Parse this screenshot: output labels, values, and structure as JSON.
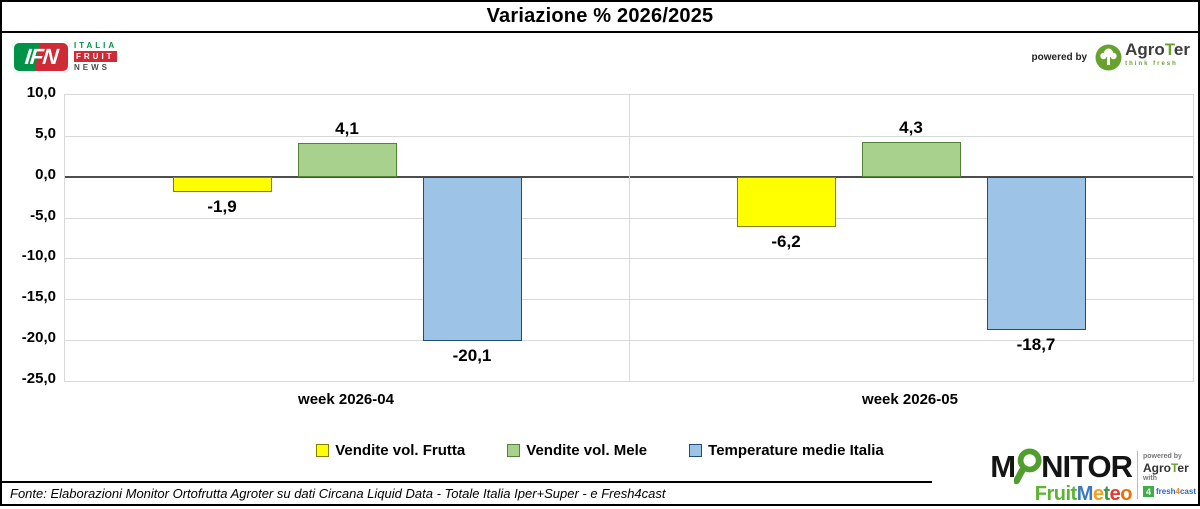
{
  "title": "Variazione % 2026/2025",
  "logos": {
    "ifn": {
      "abbr": "IFN",
      "line1": "ITALIA",
      "line2": "FRUIT",
      "line3": "NEWS"
    },
    "agroter_top": {
      "powered_by": "powered by",
      "brand_pre": "Agro",
      "brand_t": "T",
      "brand_post": "er",
      "tagline": "think fresh"
    },
    "monitor": {
      "word_prefix": "M",
      "word_rest": "NITOR",
      "fruit": "Fruit",
      "meteo_letters": [
        {
          "ch": "M",
          "color": "#3c79c0"
        },
        {
          "ch": "e",
          "color": "#f7a01b"
        },
        {
          "ch": "t",
          "color": "#2e9e49"
        },
        {
          "ch": "e",
          "color": "#e23a2e"
        },
        {
          "ch": "o",
          "color": "#e8710a"
        }
      ],
      "powered_by": "powered by",
      "brand_pre": "Agro",
      "brand_t": "T",
      "brand_post": "er",
      "with": "with",
      "fresh_icon": "4",
      "fresh_pre": "fresh",
      "fresh_num": "4",
      "fresh_post": "cast"
    }
  },
  "chart_data": {
    "type": "bar",
    "title": "Variazione % 2026/2025",
    "categories": [
      "week 2026-04",
      "week 2026-05"
    ],
    "series": [
      {
        "name": "Vendite vol. Frutta",
        "values": [
          -1.9,
          -6.2
        ],
        "labels": [
          "-1,9",
          "-6,2"
        ],
        "fill": "#ffff00",
        "border": "#7f7f00"
      },
      {
        "name": "Vendite vol. Mele",
        "values": [
          4.1,
          4.3
        ],
        "labels": [
          "4,1",
          "4,3"
        ],
        "fill": "#a9d18e",
        "border": "#538135"
      },
      {
        "name": "Temperature medie Italia",
        "values": [
          -20.1,
          -18.7
        ],
        "labels": [
          "-20,1",
          "-18,7"
        ],
        "fill": "#9dc3e6",
        "border": "#1f4e79"
      }
    ],
    "ylim": [
      -25,
      10
    ],
    "yticks": [
      10,
      5,
      0,
      -5,
      -10,
      -15,
      -20,
      -25
    ],
    "ytick_labels": [
      "10,0",
      "5,0",
      "0,0",
      "-5,0",
      "-10,0",
      "-15,0",
      "-20,0",
      "-25,0"
    ],
    "grid": true,
    "legend_position": "bottom",
    "xlabel": "",
    "ylabel": ""
  },
  "footer": {
    "source": "Fonte: Elaborazioni Monitor Ortofrutta Agroter su dati Circana Liquid Data - Totale Italia Iper+Super - e Fresh4cast"
  }
}
